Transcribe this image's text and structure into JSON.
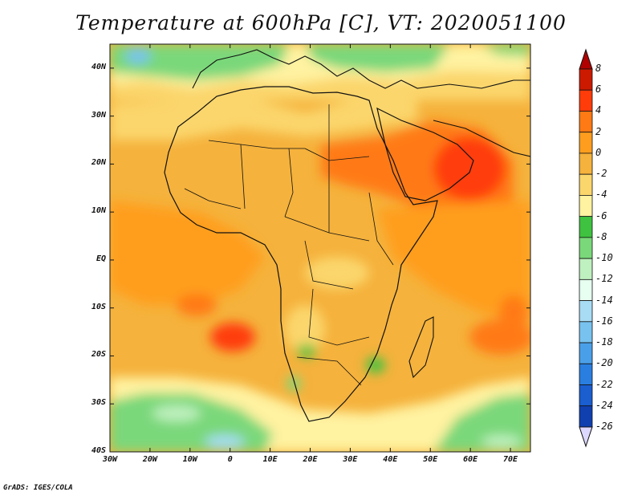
{
  "title": "Temperature at 600hPa [C], VT: 2020051100",
  "credit": "GrADS: IGES/COLA",
  "map": {
    "lon_range": [
      -30,
      75
    ],
    "lat_range": [
      -40,
      45
    ],
    "lat_ticks": [
      {
        "lat": 40,
        "label": "40N"
      },
      {
        "lat": 30,
        "label": "30N"
      },
      {
        "lat": 20,
        "label": "20N"
      },
      {
        "lat": 10,
        "label": "10N"
      },
      {
        "lat": 0,
        "label": "EQ"
      },
      {
        "lat": -10,
        "label": "10S"
      },
      {
        "lat": -20,
        "label": "20S"
      },
      {
        "lat": -30,
        "label": "30S"
      },
      {
        "lat": -40,
        "label": "40S"
      }
    ],
    "lon_ticks": [
      {
        "lon": -30,
        "label": "30W"
      },
      {
        "lon": -20,
        "label": "20W"
      },
      {
        "lon": -10,
        "label": "10W"
      },
      {
        "lon": 0,
        "label": "0"
      },
      {
        "lon": 10,
        "label": "10E"
      },
      {
        "lon": 20,
        "label": "20E"
      },
      {
        "lon": 30,
        "label": "30E"
      },
      {
        "lon": 40,
        "label": "40E"
      },
      {
        "lon": 50,
        "label": "50E"
      },
      {
        "lon": 60,
        "label": "60E"
      },
      {
        "lon": 70,
        "label": "70E"
      }
    ]
  },
  "colorbar": {
    "levels": [
      {
        "label": "8",
        "color": "#cc1a00"
      },
      {
        "label": "6",
        "color": "#ff3c0a"
      },
      {
        "label": "4",
        "color": "#ff7a14"
      },
      {
        "label": "2",
        "color": "#ff9e1e"
      },
      {
        "label": "0",
        "color": "#f5b23c"
      },
      {
        "label": "-2",
        "color": "#fbd66c"
      },
      {
        "label": "-4",
        "color": "#fff2a0"
      },
      {
        "label": "-6",
        "color": "#3fc23f"
      },
      {
        "label": "-8",
        "color": "#7ad87a"
      },
      {
        "label": "-10",
        "color": "#bff0bf"
      },
      {
        "label": "-12",
        "color": "#e6fff0"
      },
      {
        "label": "-14",
        "color": "#a8dcf5"
      },
      {
        "label": "-16",
        "color": "#78c2f0"
      },
      {
        "label": "-18",
        "color": "#4aa0e8"
      },
      {
        "label": "-20",
        "color": "#2a7ee0"
      },
      {
        "label": "-22",
        "color": "#1a5ed0"
      },
      {
        "label": "-24",
        "color": "#1040b0"
      },
      {
        "label": "-26",
        "color": "#0a1e70"
      }
    ],
    "top_color": "#b00000",
    "bottom_color": "#dcd8ff"
  }
}
